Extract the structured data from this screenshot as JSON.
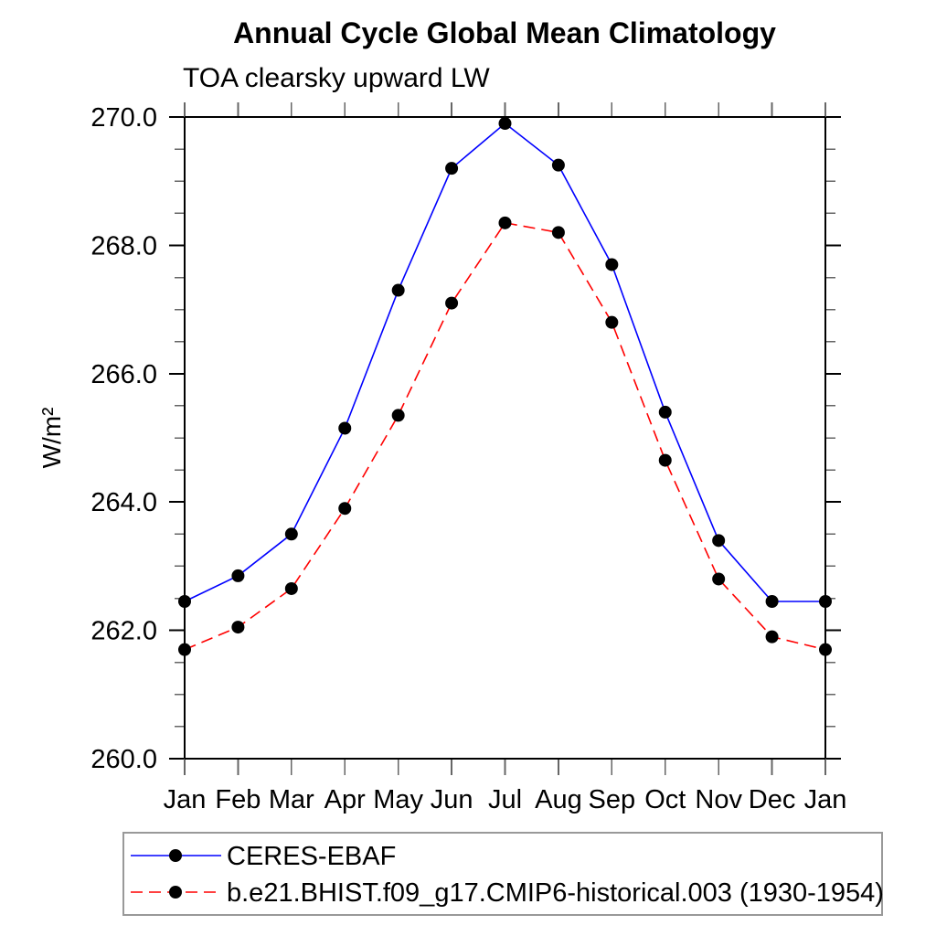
{
  "chart_data": {
    "type": "line",
    "title": "Annual Cycle Global Mean Climatology",
    "subtitle": "TOA clearsky upward LW",
    "ylabel": "W/m²",
    "xlabel": "",
    "categories": [
      "Jan",
      "Feb",
      "Mar",
      "Apr",
      "May",
      "Jun",
      "Jul",
      "Aug",
      "Sep",
      "Oct",
      "Nov",
      "Dec",
      "Jan"
    ],
    "ylim": [
      260.0,
      270.0
    ],
    "ytick_major": 2.0,
    "ytick_minor": 0.5,
    "ytick_labels": [
      "260.0",
      "262.0",
      "264.0",
      "266.0",
      "268.0",
      "270.0"
    ],
    "grid": "off",
    "legend_position": "bottom",
    "series": [
      {
        "name": "CERES-EBAF",
        "color": "#0000ff",
        "line_style": "solid",
        "marker": "filled-circle",
        "marker_color": "#000000",
        "values": [
          262.45,
          262.85,
          263.5,
          265.15,
          267.3,
          269.2,
          269.9,
          269.25,
          267.7,
          265.4,
          263.4,
          262.45,
          262.45
        ]
      },
      {
        "name": "b.e21.BHIST.f09_g17.CMIP6-historical.003 (1930-1954)",
        "color": "#ff0000",
        "line_style": "dashed",
        "marker": "filled-circle",
        "marker_color": "#000000",
        "values": [
          261.7,
          262.05,
          262.65,
          263.9,
          265.35,
          267.1,
          268.35,
          268.2,
          266.8,
          264.65,
          262.8,
          261.9,
          261.7
        ]
      }
    ]
  },
  "colors": {
    "axis": "#000000",
    "minor_tick": "#666666",
    "legend_border": "#999999",
    "background": "#ffffff"
  }
}
